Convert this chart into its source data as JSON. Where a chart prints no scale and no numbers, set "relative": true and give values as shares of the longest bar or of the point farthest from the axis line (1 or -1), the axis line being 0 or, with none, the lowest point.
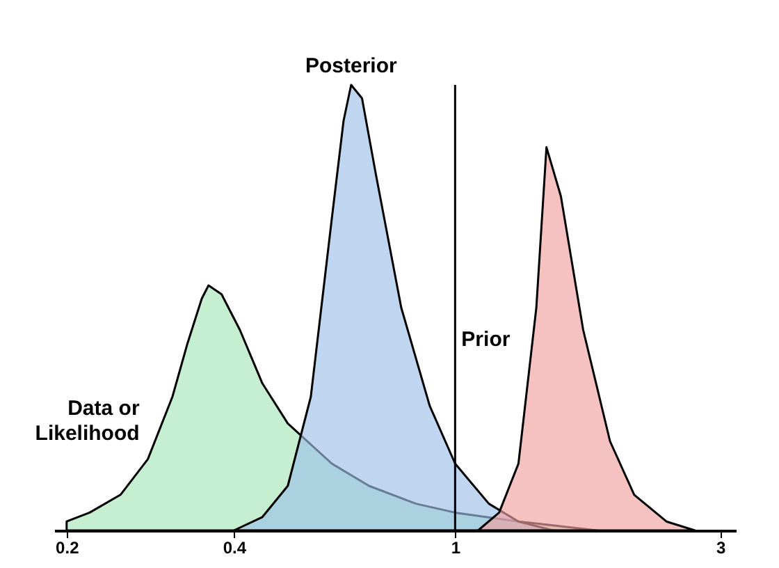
{
  "chart_data": {
    "type": "area",
    "relative": true,
    "log": "x",
    "xlim": [
      0.19,
      3.2
    ],
    "xticks": [
      0.2,
      0.4,
      1,
      3
    ],
    "grid": false,
    "ref_lines": [
      {
        "axis": "x",
        "value": 1,
        "color": "#000000"
      }
    ],
    "series": [
      {
        "name": "Data or Likelihood",
        "color": "#a8e6b8",
        "x": [
          0.2,
          0.22,
          0.25,
          0.28,
          0.31,
          0.33,
          0.35,
          0.36,
          0.38,
          0.41,
          0.45,
          0.5,
          0.6,
          0.7,
          0.85,
          1,
          1.3,
          1.8
        ],
        "values": [
          0.02,
          0.04,
          0.08,
          0.16,
          0.3,
          0.42,
          0.52,
          0.55,
          0.53,
          0.45,
          0.33,
          0.24,
          0.15,
          0.1,
          0.06,
          0.04,
          0.02,
          0
        ]
      },
      {
        "name": "Posterior",
        "color": "#9dbfe8",
        "x": [
          0.4,
          0.45,
          0.5,
          0.55,
          0.6,
          0.63,
          0.65,
          0.68,
          0.72,
          0.8,
          0.9,
          1,
          1.15,
          1.3,
          1.5
        ],
        "values": [
          0,
          0.03,
          0.1,
          0.3,
          0.7,
          0.92,
          1,
          0.97,
          0.8,
          0.5,
          0.28,
          0.15,
          0.06,
          0.02,
          0
        ]
      },
      {
        "name": "Prior",
        "color": "#f0a0a0",
        "x": [
          1.1,
          1.2,
          1.3,
          1.4,
          1.46,
          1.55,
          1.7,
          1.9,
          2.1,
          2.4,
          2.7
        ],
        "values": [
          0,
          0.04,
          0.15,
          0.5,
          0.86,
          0.75,
          0.45,
          0.2,
          0.08,
          0.02,
          0
        ]
      }
    ]
  }
}
